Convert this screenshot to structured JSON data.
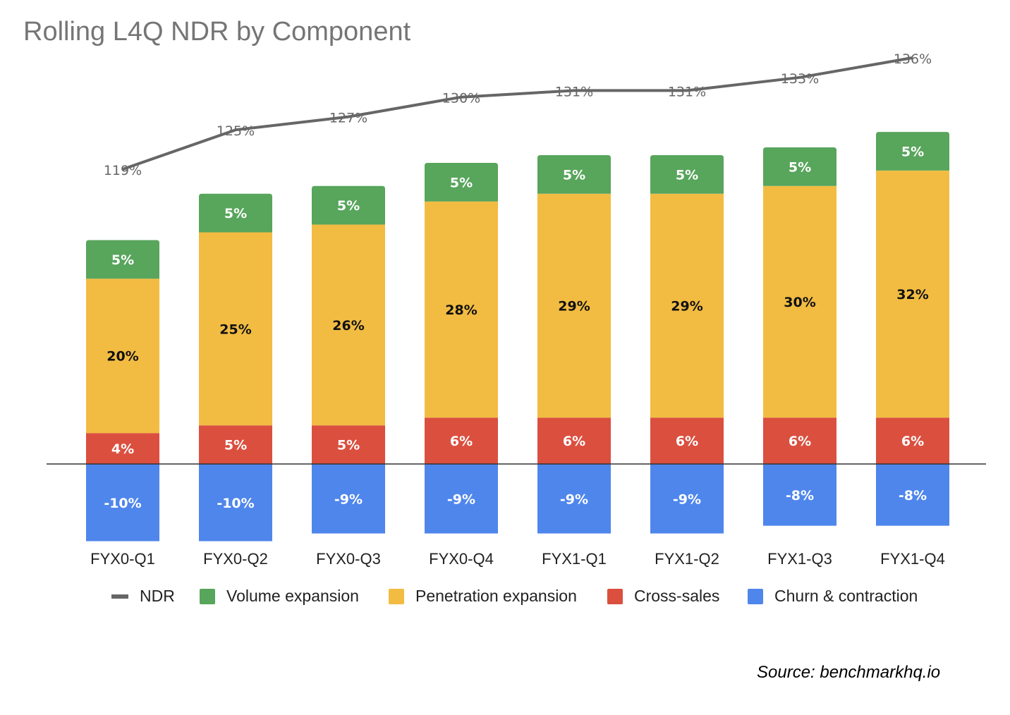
{
  "chart_data": {
    "type": "bar",
    "stacked": true,
    "title": "Rolling L4Q NDR by Component",
    "categories": [
      "FYX0-Q1",
      "FYX0-Q2",
      "FYX0-Q3",
      "FYX0-Q4",
      "FYX1-Q1",
      "FYX1-Q2",
      "FYX1-Q3",
      "FYX1-Q4"
    ],
    "series": [
      {
        "name": "Churn & contraction",
        "color": "#4f86ec",
        "values": [
          -10,
          -10,
          -9,
          -9,
          -9,
          -9,
          -8,
          -8
        ],
        "labels": [
          "-10%",
          "-10%",
          "-9%",
          "-9%",
          "-9%",
          "-9%",
          "-8%",
          "-8%"
        ]
      },
      {
        "name": "Cross-sales",
        "color": "#db4f3f",
        "values": [
          4,
          5,
          5,
          6,
          6,
          6,
          6,
          6
        ],
        "labels": [
          "4%",
          "5%",
          "5%",
          "6%",
          "6%",
          "6%",
          "6%",
          "6%"
        ]
      },
      {
        "name": "Penetration expansion",
        "color": "#f2bc42",
        "values": [
          20,
          25,
          26,
          28,
          29,
          29,
          30,
          32
        ],
        "labels": [
          "20%",
          "25%",
          "26%",
          "28%",
          "29%",
          "29%",
          "30%",
          "32%"
        ]
      },
      {
        "name": "Volume expansion",
        "color": "#58a55c",
        "values": [
          5,
          5,
          5,
          5,
          5,
          5,
          5,
          5
        ],
        "labels": [
          "5%",
          "5%",
          "5%",
          "5%",
          "5%",
          "5%",
          "5%",
          "5%"
        ]
      }
    ],
    "line": {
      "name": "NDR",
      "color": "#666666",
      "values": [
        119,
        125,
        127,
        130,
        131,
        131,
        133,
        136
      ],
      "labels": [
        "119%",
        "125%",
        "127%",
        "130%",
        "131%",
        "131%",
        "133%",
        "136%"
      ]
    },
    "legend": [
      "NDR",
      "Volume expansion",
      "Penetration expansion",
      "Cross-sales",
      "Churn & contraction"
    ],
    "legend_position": "bottom",
    "grid": false,
    "xlabel": "",
    "ylabel": ""
  },
  "source": "Source: benchmarkhq.io"
}
